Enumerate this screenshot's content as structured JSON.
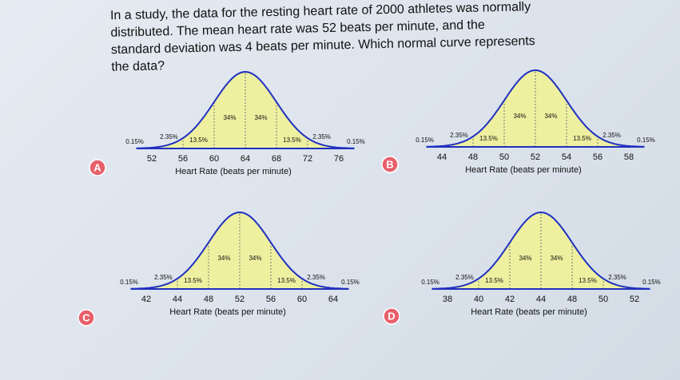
{
  "question": {
    "lines": [
      "In a study, the data for the resting heart rate of 2000 athletes was normally",
      "distributed. The mean heart rate was 52 beats per minute, and the",
      "standard deviation was 4 beats per minute. Which normal curve represents",
      "the data?"
    ]
  },
  "options": [
    {
      "letter": "A",
      "ticks": [
        "52",
        "56",
        "60",
        "64",
        "68",
        "72",
        "76"
      ],
      "axis_title": "Heart Rate (beats per minute)",
      "percents": [
        "0.15%",
        "2.35%",
        "13.5%",
        "34%",
        "34%",
        "13.5%",
        "2.35%",
        "0.15%"
      ]
    },
    {
      "letter": "B",
      "ticks": [
        "44",
        "48",
        "50",
        "52",
        "54",
        "56",
        "58"
      ],
      "axis_title": "Heart Rate (beats per minute)",
      "percents": [
        "0.15%",
        "2.35%",
        "13.5%",
        "34%",
        "34%",
        "13.5%",
        "2.35%",
        "0.15%"
      ]
    },
    {
      "letter": "C",
      "ticks": [
        "42",
        "44",
        "48",
        "52",
        "56",
        "60",
        "64"
      ],
      "axis_title": "Heart Rate (beats per minute)",
      "percents": [
        "0.15%",
        "2.35%",
        "13.5%",
        "34%",
        "34%",
        "13.5%",
        "2.35%",
        "0.15%"
      ]
    },
    {
      "letter": "D",
      "ticks": [
        "38",
        "40",
        "42",
        "44",
        "48",
        "50",
        "52"
      ],
      "axis_title": "Heart Rate (beats per minute)",
      "percents": [
        "0.15%",
        "2.35%",
        "13.5%",
        "34%",
        "34%",
        "13.5%",
        "2.35%",
        "0.15%"
      ]
    }
  ]
}
